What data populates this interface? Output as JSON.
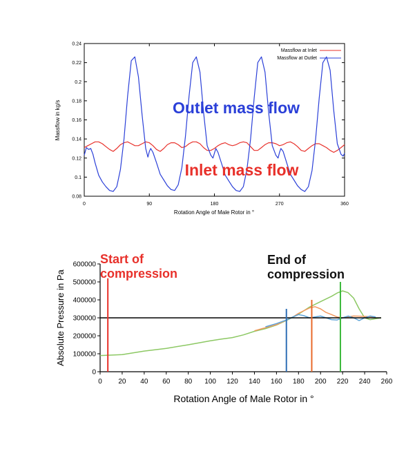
{
  "chart_data": [
    {
      "type": "line",
      "title": "",
      "xlabel": "Rotation Angle of Male Rotor in °",
      "ylabel": "Massflow in kg/s",
      "xlim": [
        0,
        360
      ],
      "ylim": [
        0.08,
        0.24
      ],
      "xticks": [
        0,
        90,
        180,
        270,
        360
      ],
      "yticks": [
        0.08,
        0.1,
        0.12,
        0.14,
        0.16,
        0.18,
        0.2,
        0.22,
        0.24
      ],
      "grid": false,
      "legend_position": "top-right",
      "series": [
        {
          "name": "Massflow at Inlet",
          "color": "#e8302a",
          "x": [
            0,
            5,
            10,
            15,
            20,
            25,
            30,
            35,
            40,
            45,
            50,
            55,
            60,
            65,
            70,
            75,
            80,
            85,
            90,
            95,
            100,
            105,
            110,
            115,
            120,
            125,
            130,
            135,
            140,
            145,
            150,
            155,
            160,
            165,
            170,
            175,
            180,
            185,
            190,
            195,
            200,
            205,
            210,
            215,
            220,
            225,
            230,
            235,
            240,
            245,
            250,
            255,
            260,
            265,
            270,
            275,
            280,
            285,
            290,
            295,
            300,
            305,
            310,
            315,
            320,
            325,
            330,
            335,
            340,
            345,
            350,
            355,
            360
          ],
          "y": [
            0.131,
            0.133,
            0.135,
            0.137,
            0.137,
            0.135,
            0.132,
            0.129,
            0.127,
            0.13,
            0.134,
            0.136,
            0.137,
            0.135,
            0.133,
            0.133,
            0.135,
            0.137,
            0.136,
            0.133,
            0.129,
            0.127,
            0.13,
            0.134,
            0.136,
            0.136,
            0.134,
            0.131,
            0.132,
            0.135,
            0.137,
            0.137,
            0.135,
            0.131,
            0.128,
            0.128,
            0.13,
            0.133,
            0.135,
            0.136,
            0.134,
            0.133,
            0.134,
            0.136,
            0.137,
            0.136,
            0.132,
            0.128,
            0.128,
            0.131,
            0.134,
            0.136,
            0.136,
            0.135,
            0.133,
            0.134,
            0.136,
            0.137,
            0.135,
            0.132,
            0.128,
            0.127,
            0.13,
            0.133,
            0.135,
            0.135,
            0.133,
            0.131,
            0.128,
            0.126,
            0.128,
            0.131,
            0.134
          ]
        },
        {
          "name": "Massflow at Outlet",
          "color": "#2a3fd8",
          "x": [
            0,
            3,
            6,
            9,
            12,
            15,
            20,
            25,
            30,
            35,
            40,
            45,
            50,
            55,
            60,
            65,
            70,
            75,
            80,
            85,
            88,
            90,
            92,
            95,
            100,
            105,
            110,
            115,
            120,
            125,
            130,
            135,
            140,
            145,
            150,
            155,
            160,
            165,
            170,
            175,
            178,
            180,
            182,
            185,
            190,
            195,
            200,
            205,
            210,
            215,
            220,
            225,
            230,
            235,
            240,
            245,
            250,
            255,
            260,
            265,
            268,
            270,
            272,
            275,
            280,
            285,
            290,
            295,
            300,
            305,
            310,
            315,
            320,
            325,
            330,
            335,
            340,
            345,
            350,
            355,
            358,
            360
          ],
          "y": [
            0.123,
            0.131,
            0.129,
            0.13,
            0.124,
            0.115,
            0.102,
            0.095,
            0.09,
            0.086,
            0.085,
            0.09,
            0.108,
            0.14,
            0.185,
            0.222,
            0.226,
            0.205,
            0.165,
            0.13,
            0.121,
            0.127,
            0.13,
            0.126,
            0.115,
            0.103,
            0.097,
            0.091,
            0.087,
            0.086,
            0.092,
            0.11,
            0.143,
            0.185,
            0.22,
            0.226,
            0.21,
            0.168,
            0.133,
            0.123,
            0.12,
            0.125,
            0.13,
            0.126,
            0.114,
            0.102,
            0.096,
            0.09,
            0.086,
            0.085,
            0.09,
            0.108,
            0.14,
            0.183,
            0.22,
            0.226,
            0.21,
            0.168,
            0.133,
            0.123,
            0.12,
            0.126,
            0.13,
            0.127,
            0.115,
            0.103,
            0.097,
            0.091,
            0.087,
            0.085,
            0.09,
            0.107,
            0.14,
            0.183,
            0.22,
            0.226,
            0.212,
            0.17,
            0.135,
            0.124,
            0.122,
            0.125
          ]
        }
      ],
      "annotations": [
        {
          "text": "Outlet mass flow",
          "color": "#2a3fd8",
          "x": 205,
          "y": 0.162
        },
        {
          "text": "Inlet mass flow",
          "color": "#e8302a",
          "x": 210,
          "y": 0.103
        }
      ]
    },
    {
      "type": "line",
      "title": "",
      "xlabel": "Rotation Angle of Male Rotor in °",
      "ylabel": "Absolute Pressure in Pa",
      "xlim": [
        0,
        260
      ],
      "ylim": [
        0,
        600000
      ],
      "xticks": [
        0,
        20,
        40,
        60,
        80,
        100,
        120,
        140,
        160,
        180,
        200,
        220,
        240,
        260
      ],
      "yticks": [
        0,
        100000,
        200000,
        300000,
        400000,
        500000,
        600000
      ],
      "grid": false,
      "series": [
        {
          "color": "#8cc863",
          "x": [
            0,
            20,
            40,
            60,
            80,
            100,
            110,
            120,
            130,
            140,
            150,
            160,
            170,
            180,
            190,
            200,
            210,
            215,
            220,
            225,
            230,
            235,
            240,
            245,
            250,
            255
          ],
          "y": [
            90000,
            95000,
            115000,
            130000,
            150000,
            172000,
            182000,
            190000,
            205000,
            225000,
            240000,
            260000,
            288000,
            320000,
            360000,
            390000,
            420000,
            438000,
            450000,
            440000,
            410000,
            350000,
            300000,
            290000,
            295000,
            300000
          ]
        },
        {
          "color": "#f29a60",
          "x": [
            140,
            150,
            160,
            170,
            175,
            180,
            185,
            190,
            195,
            200,
            205,
            210,
            215,
            220,
            225,
            230,
            240,
            250
          ],
          "y": [
            228000,
            245000,
            262000,
            290000,
            305000,
            325000,
            340000,
            355000,
            362000,
            350000,
            330000,
            318000,
            305000,
            300000,
            305000,
            310000,
            308000,
            305000
          ]
        },
        {
          "color": "#5ba3d8",
          "x": [
            150,
            160,
            170,
            175,
            180,
            185,
            190,
            195,
            200,
            205,
            210,
            215,
            220,
            225,
            230,
            235,
            240,
            245,
            250
          ],
          "y": [
            250000,
            268000,
            290000,
            305000,
            318000,
            312000,
            300000,
            305000,
            310000,
            300000,
            290000,
            288000,
            300000,
            310000,
            300000,
            285000,
            300000,
            310000,
            305000
          ]
        }
      ],
      "reference_lines": {
        "horizontal_y": 300000,
        "vertical": [
          {
            "x": 7,
            "color": "#e8302a"
          },
          {
            "x": 169,
            "color": "#2e6fb5"
          },
          {
            "x": 192,
            "color": "#e86a2a"
          },
          {
            "x": 218,
            "color": "#3ab83a"
          }
        ]
      },
      "annotations": [
        {
          "text": "Start of\ncompression",
          "color": "#e8302a"
        },
        {
          "text": "End of\ncompression",
          "color": "#111111"
        }
      ]
    }
  ]
}
